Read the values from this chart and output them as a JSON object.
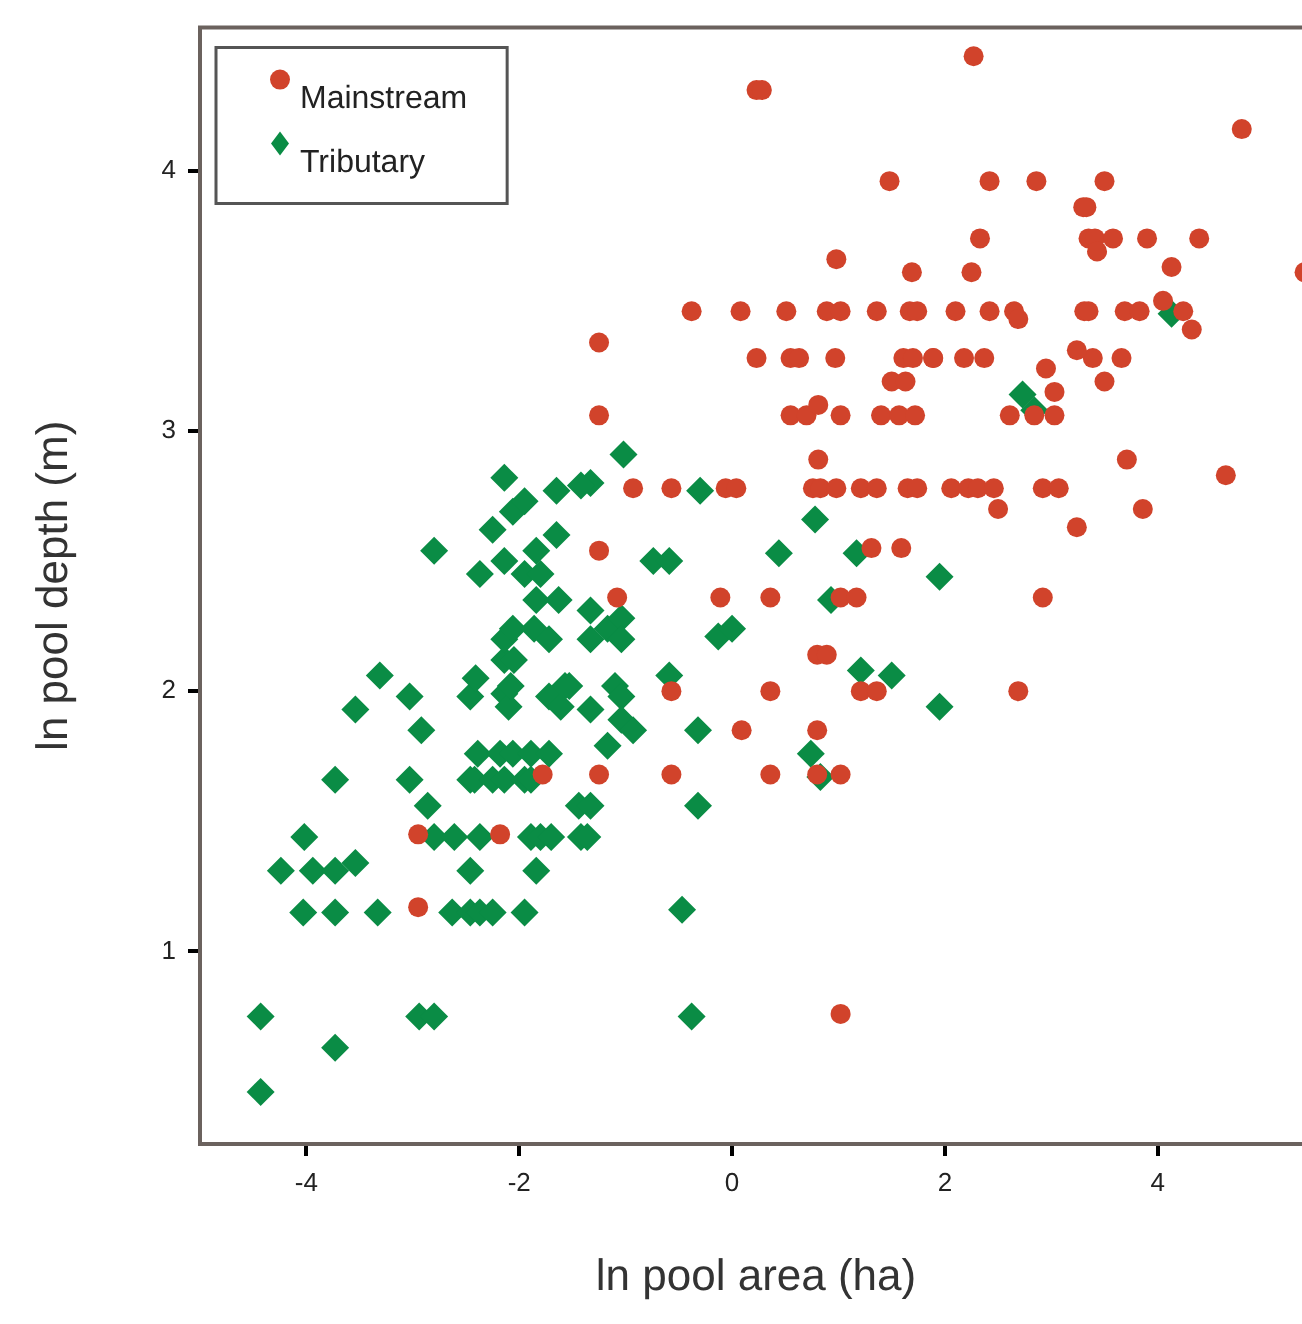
{
  "chart_data": {
    "type": "scatter",
    "xlabel": "ln pool area (ha)",
    "ylabel": "ln pool depth (m)",
    "xlim": [
      -5,
      5.45
    ],
    "ylim": [
      0.26,
      4.55
    ],
    "xticks": [
      -4,
      -2,
      0,
      2,
      4
    ],
    "yticks": [
      1,
      2,
      3,
      4
    ],
    "grid": false,
    "legend": "top left",
    "series": [
      {
        "name": "Mainstream",
        "color": "#d1432b",
        "marker": "circle",
        "x": [
          0.23,
          0.28,
          1.48,
          0.98,
          1.69,
          -0.38,
          0.08,
          0.51,
          0.89,
          1.02,
          1.36,
          1.67,
          1.74,
          -1.25,
          0.23,
          0.55,
          0.63,
          0.97,
          1.61,
          1.7,
          1.89,
          1.5,
          1.63,
          -1.25,
          0.55,
          0.7,
          1.02,
          1.4,
          1.57,
          1.72,
          0.81,
          0.81,
          -0.93,
          -0.57,
          -0.06,
          0.04,
          0.76,
          0.83,
          0.98,
          1.21,
          1.36,
          1.65,
          1.74,
          -1.25,
          1.31,
          1.59,
          -1.08,
          -0.11,
          0.36,
          1.02,
          1.17,
          0.8,
          0.89,
          -0.57,
          0.36,
          1.21,
          1.36,
          0.09,
          0.8,
          -1.25,
          -0.57,
          0.36,
          0.8,
          1.02,
          1.02,
          -1.78,
          -2.95,
          -2.18,
          -2.95,
          2.27,
          4.79,
          2.42,
          2.86,
          3.5,
          3.3,
          3.33,
          2.33,
          3.35,
          3.41,
          3.58,
          3.9,
          4.39,
          3.43,
          2.25,
          4.13,
          5.38,
          2.1,
          2.42,
          2.65,
          3.31,
          3.35,
          3.69,
          3.83,
          4.24,
          2.69,
          4.05,
          4.32,
          1.89,
          2.18,
          2.37,
          3.39,
          3.66,
          3.24,
          2.95,
          3.03,
          3.5,
          2.61,
          2.84,
          3.03,
          3.71,
          4.64,
          2.06,
          2.22,
          2.31,
          2.46,
          2.92,
          3.07,
          2.5,
          3.86,
          3.24,
          2.92,
          2.69
        ],
        "values": [
          4.31,
          4.31,
          3.96,
          3.66,
          3.61,
          3.46,
          3.46,
          3.46,
          3.46,
          3.46,
          3.46,
          3.46,
          3.46,
          3.34,
          3.28,
          3.28,
          3.28,
          3.28,
          3.28,
          3.28,
          3.28,
          3.19,
          3.19,
          3.06,
          3.06,
          3.06,
          3.06,
          3.06,
          3.06,
          3.06,
          3.1,
          2.89,
          2.78,
          2.78,
          2.78,
          2.78,
          2.78,
          2.78,
          2.78,
          2.78,
          2.78,
          2.78,
          2.78,
          2.54,
          2.55,
          2.55,
          2.36,
          2.36,
          2.36,
          2.36,
          2.36,
          2.14,
          2.14,
          2,
          2,
          2,
          2,
          1.85,
          1.85,
          1.68,
          1.68,
          1.68,
          1.68,
          1.68,
          0.76,
          1.68,
          1.45,
          1.45,
          1.17,
          4.44,
          4.16,
          3.96,
          3.96,
          3.96,
          3.86,
          3.86,
          3.74,
          3.74,
          3.74,
          3.74,
          3.74,
          3.74,
          3.69,
          3.61,
          3.63,
          3.61,
          3.46,
          3.46,
          3.46,
          3.46,
          3.46,
          3.46,
          3.46,
          3.46,
          3.43,
          3.5,
          3.39,
          3.28,
          3.28,
          3.28,
          3.28,
          3.28,
          3.31,
          3.24,
          3.15,
          3.19,
          3.06,
          3.06,
          3.06,
          2.89,
          2.83,
          2.78,
          2.78,
          2.78,
          2.78,
          2.78,
          2.78,
          2.7,
          2.7,
          2.63,
          2.36,
          2
        ]
      },
      {
        "name": "Tributary",
        "color": "#0a8c45",
        "marker": "diamond",
        "x": [
          -4.43,
          -4.43,
          -3.73,
          -2.94,
          -2.8,
          -4.03,
          -3.73,
          -3.33,
          -2.63,
          -2.46,
          -2.37,
          -2.25,
          -1.95,
          -4.24,
          -3.94,
          -3.73,
          -3.54,
          -2.46,
          -1.84,
          -4.02,
          -2.8,
          -2.61,
          -2.37,
          -1.89,
          -1.8,
          -1.7,
          -1.42,
          -2.86,
          -1.44,
          -1.33,
          -1.36,
          -3.73,
          -3.03,
          -2.46,
          -2.42,
          -2.25,
          -2.14,
          -1.95,
          -1.89,
          -2.39,
          -2.18,
          -2.06,
          -1.89,
          -1.72,
          -3.54,
          -3.03,
          -3.31,
          -2.92,
          -2.46,
          -2.41,
          -2.14,
          -2.1,
          -2.08,
          -1.72,
          -1.61,
          -1.53,
          -2.14,
          -2.05,
          -2.14,
          -2.06,
          -1.86,
          -1.72,
          -1.84,
          -1.63,
          -1.33,
          -1.33,
          -1.17,
          -1.04,
          -1.04,
          -1.57,
          -1.33,
          -1.1,
          -1.04,
          -1.04,
          -0.93,
          -1.17,
          -0.59,
          -0.32,
          -0.32,
          -0.47,
          -0.38,
          -0.13,
          0,
          0.93,
          1.21,
          1.5,
          0.74,
          0.83,
          1.95,
          1.95,
          -1.02,
          -1.33,
          -0.3,
          0.78,
          0.44,
          1.17,
          -0.74,
          -0.59,
          2.73,
          2.84,
          4.13,
          -2.14,
          -1.65,
          -2.06,
          -1.95,
          -2.25,
          -1.65,
          -2.8,
          -2.14,
          -1.84,
          -2.37,
          -1.95,
          -1.8,
          -1.42
        ],
        "values": [
          0.75,
          0.46,
          0.63,
          0.75,
          0.75,
          1.15,
          1.15,
          1.15,
          1.15,
          1.15,
          1.15,
          1.15,
          1.15,
          1.31,
          1.31,
          1.31,
          1.34,
          1.31,
          1.31,
          1.44,
          1.44,
          1.44,
          1.44,
          1.44,
          1.44,
          1.44,
          1.44,
          1.56,
          1.56,
          1.56,
          1.44,
          1.66,
          1.66,
          1.66,
          1.66,
          1.66,
          1.66,
          1.66,
          1.66,
          1.76,
          1.76,
          1.76,
          1.76,
          1.76,
          1.93,
          1.98,
          2.06,
          1.85,
          1.98,
          2.05,
          1.99,
          1.94,
          2.02,
          1.98,
          1.94,
          2.02,
          2.12,
          2.12,
          2.2,
          2.24,
          2.24,
          2.2,
          2.35,
          2.35,
          2.31,
          2.2,
          2.24,
          2.28,
          2.2,
          2.02,
          1.93,
          2.02,
          1.98,
          1.89,
          1.85,
          1.79,
          2.06,
          1.85,
          1.56,
          1.16,
          0.75,
          2.21,
          2.24,
          2.35,
          2.08,
          2.06,
          1.76,
          1.67,
          1.94,
          2.44,
          2.91,
          2.8,
          2.77,
          2.66,
          2.53,
          2.53,
          2.5,
          2.5,
          3.14,
          3.08,
          3.45,
          2.82,
          2.77,
          2.69,
          2.73,
          2.62,
          2.6,
          2.54,
          2.5,
          2.54,
          2.45,
          2.45,
          2.45,
          2.79
        ]
      }
    ]
  }
}
